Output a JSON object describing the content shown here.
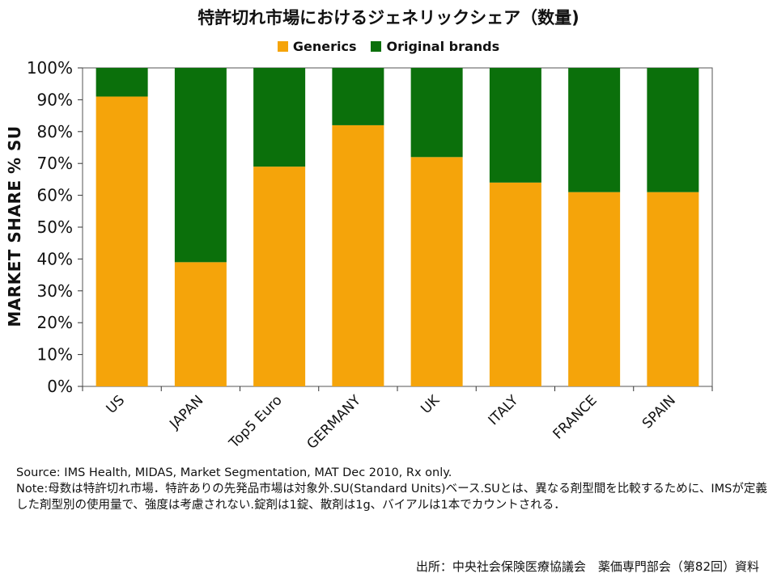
{
  "chart_data": {
    "type": "bar",
    "stacked": true,
    "title": "特許切れ市場におけるジェネリックシェア（数量)",
    "ylabel": "MARKET SHARE % SU",
    "xlabel": "",
    "ylim": [
      0,
      100
    ],
    "yticks": [
      "0%",
      "10%",
      "20%",
      "30%",
      "40%",
      "50%",
      "60%",
      "70%",
      "80%",
      "90%",
      "100%"
    ],
    "categories": [
      "US",
      "JAPAN",
      "Top5 Euro",
      "GERMANY",
      "UK",
      "ITALY",
      "FRANCE",
      "SPAIN"
    ],
    "series": [
      {
        "name": "Generics",
        "color": "#f5a40a",
        "values": [
          91,
          39,
          69,
          82,
          72,
          64,
          61,
          61
        ]
      },
      {
        "name": "Original brands",
        "color": "#0b700b",
        "values": [
          9,
          61,
          31,
          18,
          28,
          36,
          39,
          39
        ]
      }
    ],
    "grid": false,
    "legend_position": "top"
  },
  "notes": {
    "source": "Source: IMS Health, MIDAS, Market Segmentation, MAT Dec 2010, Rx only.",
    "note": "Note:母数は特許切れ市場．特許ありの先発品市場は対象外.SU(Standard Units)ベース.SUとは、異なる剤型間を比較するために、IMSが定義した剤型別の使用量で、強度は考慮されない.錠剤は1錠、散剤は1g、バイアルは1本でカウントされる．"
  },
  "footer": "出所：中央社会保険医療協議会　薬価専門部会（第82回）資料"
}
